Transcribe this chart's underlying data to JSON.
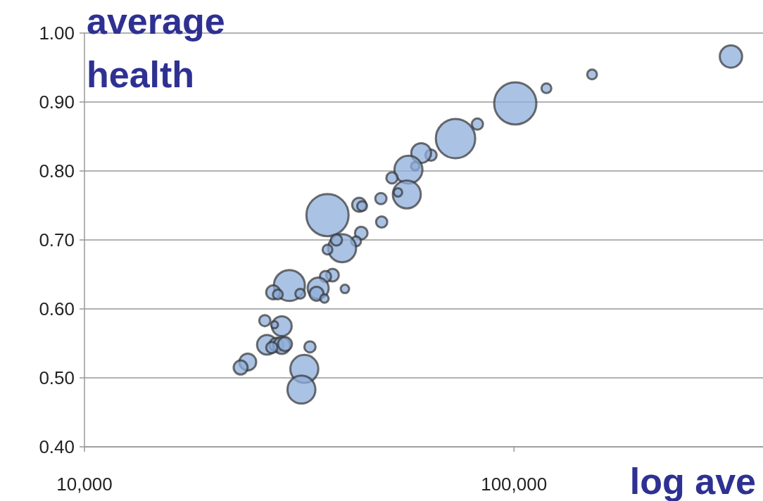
{
  "chart_data": {
    "type": "bubble",
    "ylabel": "average health",
    "xlabel": "log ave",
    "log": "x",
    "xlim": [
      10000,
      380000
    ],
    "xticks": [
      {
        "value": 10000,
        "label": "10,000"
      },
      {
        "value": 100000,
        "label": "100,000"
      }
    ],
    "ylim": [
      0.4,
      1.0
    ],
    "yticks": [
      {
        "value": 0.4,
        "label": "0.40"
      },
      {
        "value": 0.5,
        "label": "0.50"
      },
      {
        "value": 0.6,
        "label": "0.60"
      },
      {
        "value": 0.7,
        "label": "0.70"
      },
      {
        "value": 0.8,
        "label": "0.80"
      },
      {
        "value": 0.9,
        "label": "0.90"
      },
      {
        "value": 1.0,
        "label": "1.00"
      }
    ],
    "grid": "y",
    "series": [
      {
        "color": "#8eaedb",
        "x": [
          320000,
          152000,
          119000,
          100700,
          82200,
          73100,
          64100,
          60800,
          58900,
          56800,
          52000,
          56300,
          53700,
          49000,
          49200,
          36800,
          43600,
          44300,
          44100,
          42900,
          39800,
          38600,
          36800,
          40400,
          37800,
          36400,
          30000,
          27500,
          28200,
          31800,
          35000,
          34700,
          36200,
          26300,
          28800,
          27700,
          26600,
          28000,
          28800,
          29300,
          27300,
          33500,
          24000,
          23100,
          32500,
          32000
        ],
        "values": [
          0.966,
          0.94,
          0.92,
          0.898,
          0.868,
          0.847,
          0.823,
          0.826,
          0.807,
          0.802,
          0.79,
          0.766,
          0.769,
          0.76,
          0.726,
          0.736,
          0.751,
          0.749,
          0.71,
          0.698,
          0.688,
          0.7,
          0.686,
          0.629,
          0.649,
          0.647,
          0.634,
          0.624,
          0.621,
          0.622,
          0.63,
          0.622,
          0.615,
          0.583,
          0.575,
          0.577,
          0.548,
          0.548,
          0.547,
          0.549,
          0.544,
          0.545,
          0.523,
          0.515,
          0.513,
          0.483
        ],
        "sizes": [
          0.28,
          0.054,
          0.054,
          1,
          0.071,
          0.87,
          0.071,
          0.22,
          0.04,
          0.44,
          0.071,
          0.44,
          0.04,
          0.071,
          0.071,
          1,
          0.11,
          0.054,
          0.09,
          0.054,
          0.44,
          0.071,
          0.054,
          0.04,
          0.09,
          0.071,
          0.54,
          0.11,
          0.054,
          0.054,
          0.25,
          0.11,
          0.04,
          0.071,
          0.22,
          0.028,
          0.22,
          0.11,
          0.16,
          0.11,
          0.071,
          0.071,
          0.16,
          0.11,
          0.44,
          0.44
        ]
      }
    ]
  }
}
